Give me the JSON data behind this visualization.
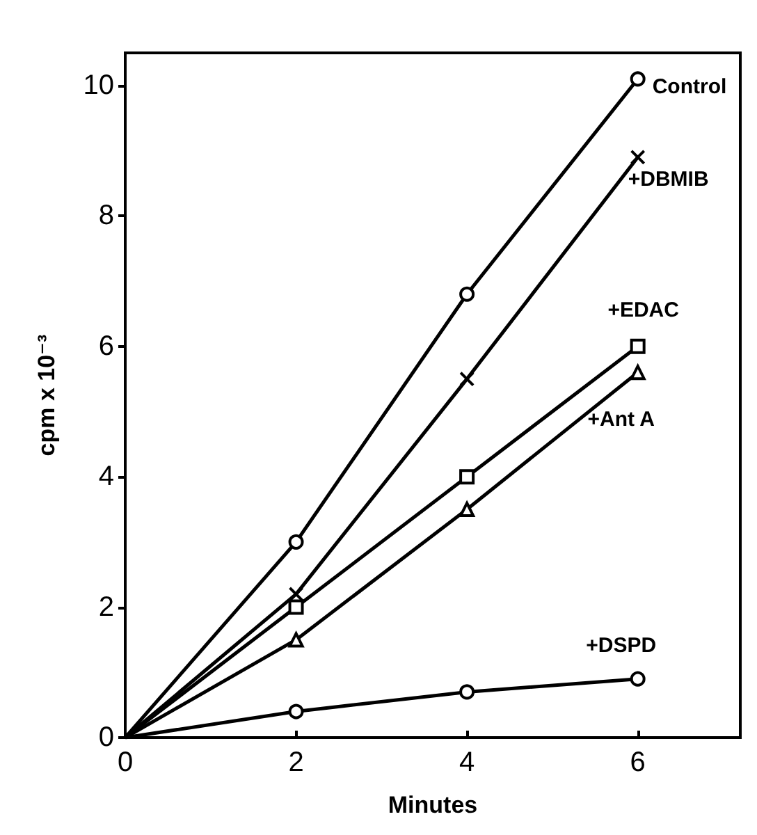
{
  "chart_data": {
    "type": "line",
    "xlabel": "Minutes",
    "ylabel": "cpm x 10⁻³",
    "x": [
      0,
      2,
      4,
      6
    ],
    "series": [
      {
        "name": "Control",
        "color": "#000000",
        "marker": "circle",
        "values": [
          0,
          3.0,
          6.8,
          10.1
        ]
      },
      {
        "name": "+DBMIB",
        "color": "#000000",
        "marker": "cross",
        "values": [
          0,
          2.2,
          5.5,
          8.9
        ]
      },
      {
        "name": "+EDAC",
        "color": "#000000",
        "marker": "square",
        "values": [
          0,
          2.0,
          4.0,
          6.0
        ]
      },
      {
        "name": "+Ant A",
        "color": "#000000",
        "marker": "triangle",
        "values": [
          0,
          1.5,
          3.5,
          5.6
        ]
      },
      {
        "name": "+DSPD",
        "color": "#000000",
        "marker": "circle",
        "values": [
          0,
          0.4,
          0.7,
          0.9
        ]
      }
    ],
    "xlim": [
      0,
      7.2
    ],
    "xticks": [
      0,
      2,
      4,
      6
    ],
    "ylim": [
      0,
      10.5
    ],
    "yticks": [
      0,
      2,
      4,
      6,
      8,
      10
    ],
    "grid": false,
    "legend": false
  }
}
